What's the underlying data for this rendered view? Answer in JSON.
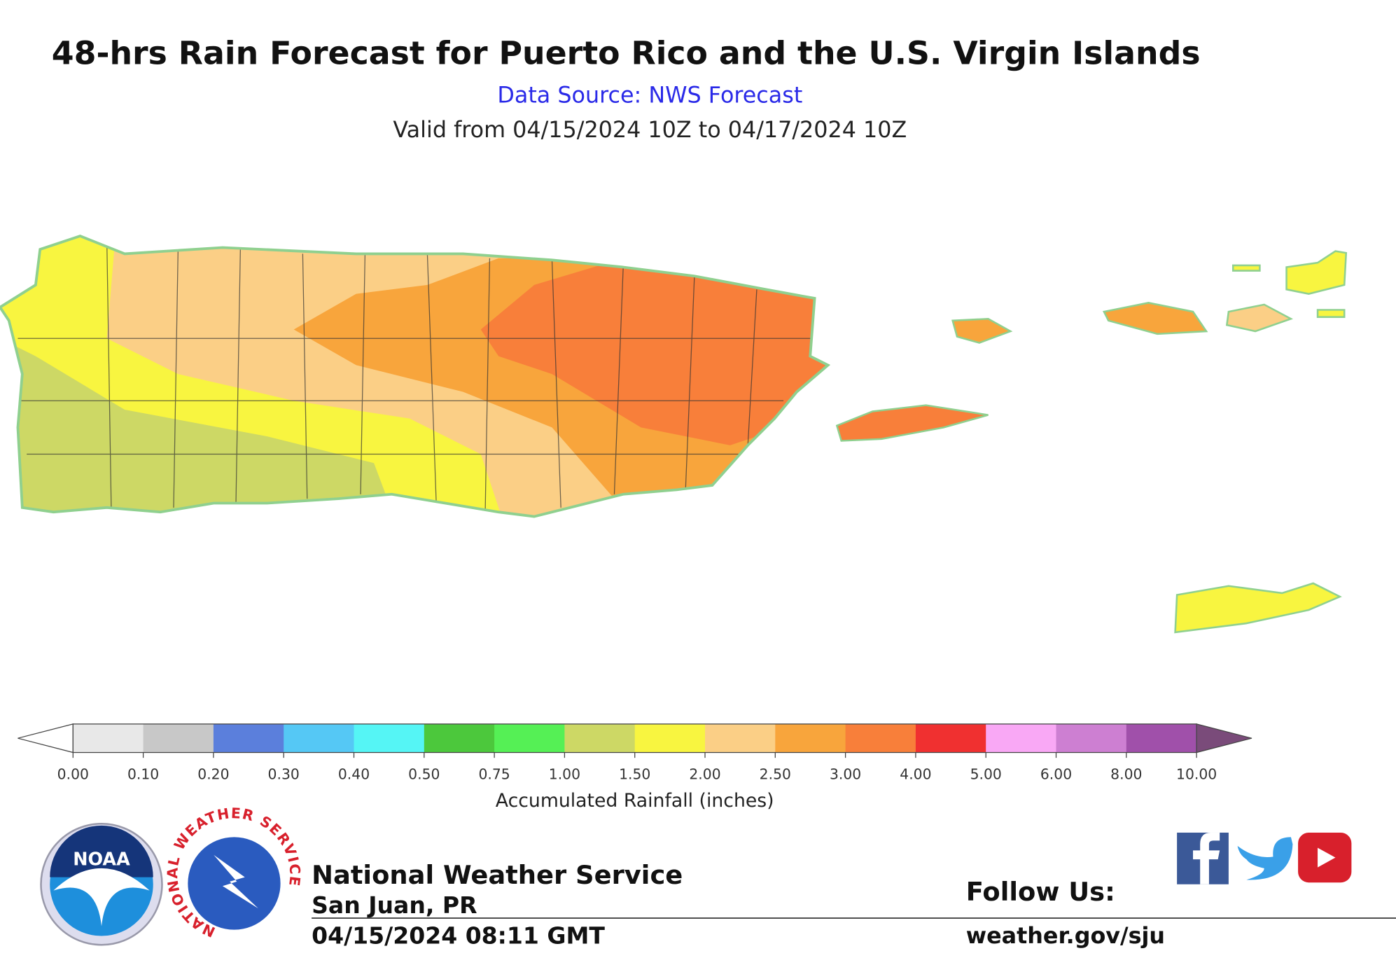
{
  "header": {
    "title": "48-hrs Rain Forecast for Puerto Rico and the U.S. Virgin Islands",
    "source": "Data Source: NWS Forecast",
    "valid": "Valid from 04/15/2024 10Z to 04/17/2024 10Z"
  },
  "colorbar": {
    "label": "Accumulated Rainfall (inches)",
    "ticks": [
      {
        "value": 0,
        "label": "0.00"
      },
      {
        "value": 0.1,
        "label": "0.10"
      },
      {
        "value": 0.2,
        "label": "0.20"
      },
      {
        "value": 0.3,
        "label": "0.30"
      },
      {
        "value": 0.4,
        "label": "0.40"
      },
      {
        "value": 0.5,
        "label": "0.50"
      },
      {
        "value": 0.75,
        "label": "0.75"
      },
      {
        "value": 1,
        "label": "1.00"
      },
      {
        "value": 1.5,
        "label": "1.50"
      },
      {
        "value": 2,
        "label": "2.00"
      },
      {
        "value": 2.5,
        "label": "2.50"
      },
      {
        "value": 3,
        "label": "3.00"
      },
      {
        "value": 4,
        "label": "4.00"
      },
      {
        "value": 5,
        "label": "5.00"
      },
      {
        "value": 6,
        "label": "6.00"
      },
      {
        "value": 8,
        "label": "8.00"
      },
      {
        "value": 10,
        "label": "10.00"
      }
    ],
    "colors": [
      "#e8e8e8",
      "#c8c8c8",
      "#5b7fdc",
      "#55c8f5",
      "#55f5f5",
      "#4cc83c",
      "#55f055",
      "#cdd865",
      "#f8f540",
      "#fbcf86",
      "#f8a53c",
      "#f87f3a",
      "#f03030",
      "#f9a8f5",
      "#cd7fd2",
      "#a050aa"
    ],
    "extend_min_color": "#ffffff",
    "extend_max_color": "#7a4b7a"
  },
  "footer": {
    "noaa": "NOAA",
    "nws_ring": "NATIONAL WEATHER SERVICE",
    "office": "National Weather Service",
    "location": "San Juan, PR",
    "issued": "04/15/2024 08:11 GMT",
    "follow": "Follow Us:",
    "url": "weather.gov/sju"
  }
}
